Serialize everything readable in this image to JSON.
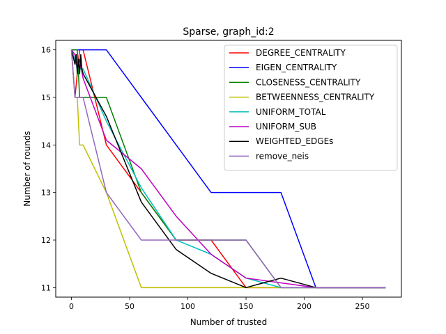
{
  "chart_data": {
    "type": "line",
    "title": "Sparse, graph_id:2",
    "xlabel": "Number of trusted",
    "ylabel": "Number of rounds",
    "xlim": [
      -13.5,
      283.5
    ],
    "ylim": [
      10.8,
      16.2
    ],
    "xticks": [
      0,
      50,
      100,
      150,
      200,
      250
    ],
    "yticks": [
      11,
      12,
      13,
      14,
      15,
      16
    ],
    "grid": false,
    "legend_position": "top-right",
    "series": [
      {
        "name": "DEGREE_CENTRALITY",
        "color": "#ff0000",
        "x": [
          0,
          3,
          5,
          7,
          10,
          30,
          60,
          90,
          120,
          150,
          180,
          210,
          240,
          270
        ],
        "y": [
          16,
          15,
          15.5,
          16,
          16,
          14,
          13,
          12,
          12,
          11,
          11,
          11,
          11,
          11
        ]
      },
      {
        "name": "EIGEN_CENTRALITY",
        "color": "#0000ff",
        "x": [
          0,
          3,
          5,
          7,
          10,
          30,
          60,
          90,
          120,
          150,
          180,
          210,
          240,
          270
        ],
        "y": [
          16,
          16,
          16,
          16,
          16,
          16,
          15,
          14,
          13,
          13,
          13,
          11,
          11,
          11
        ]
      },
      {
        "name": "CLOSENESS_CENTRALITY",
        "color": "#008000",
        "x": [
          0,
          3,
          5,
          7,
          10,
          30,
          60,
          90,
          120,
          150,
          180,
          210,
          240,
          270
        ],
        "y": [
          16,
          16,
          16,
          15,
          15,
          15,
          13,
          12,
          12,
          12,
          11,
          11,
          11,
          11
        ]
      },
      {
        "name": "BETWEENNESS_CENTRALITY",
        "color": "#bfbf00",
        "x": [
          0,
          3,
          5,
          7,
          10,
          30,
          60,
          90,
          120,
          150,
          180,
          210,
          240,
          270
        ],
        "y": [
          16,
          15,
          15,
          14,
          14,
          13,
          11,
          11,
          11,
          11,
          11,
          11,
          11,
          11
        ]
      },
      {
        "name": "UNIFORM_TOTAL",
        "color": "#00bfbf",
        "x": [
          0,
          3,
          5,
          7,
          10,
          30,
          60,
          90,
          120,
          150,
          180,
          210,
          240,
          270
        ],
        "y": [
          16,
          15.8,
          15.6,
          15.6,
          15.6,
          14.5,
          13.1,
          12,
          11.7,
          11.2,
          11,
          11,
          11,
          11
        ]
      },
      {
        "name": "UNIFORM_SUB",
        "color": "#bf00bf",
        "x": [
          0,
          3,
          5,
          7,
          10,
          30,
          60,
          90,
          120,
          150,
          180,
          210,
          240,
          270
        ],
        "y": [
          16,
          15.9,
          15.6,
          15.8,
          15.4,
          14.1,
          13.5,
          12.5,
          11.7,
          11.2,
          11.1,
          11,
          11,
          11
        ]
      },
      {
        "name": "WEIGHTED_EDGEs",
        "color": "#000000",
        "x": [
          0,
          3,
          4,
          5,
          6,
          7,
          8,
          9,
          10,
          30,
          60,
          90,
          120,
          150,
          180,
          210,
          240,
          270
        ],
        "y": [
          16,
          15.7,
          15.9,
          15.5,
          15.8,
          15.5,
          15.9,
          15.6,
          15.5,
          14.6,
          12.8,
          11.8,
          11.3,
          11,
          11.2,
          11,
          11,
          11
        ]
      },
      {
        "name": "remove_neis",
        "color": "#9467bd",
        "x": [
          0,
          3,
          5,
          7,
          10,
          30,
          60,
          90,
          120,
          150,
          180,
          210,
          240,
          270
        ],
        "y": [
          16,
          15,
          15,
          15,
          15,
          13,
          12,
          12,
          12,
          12,
          11,
          11,
          11,
          11
        ]
      }
    ]
  }
}
